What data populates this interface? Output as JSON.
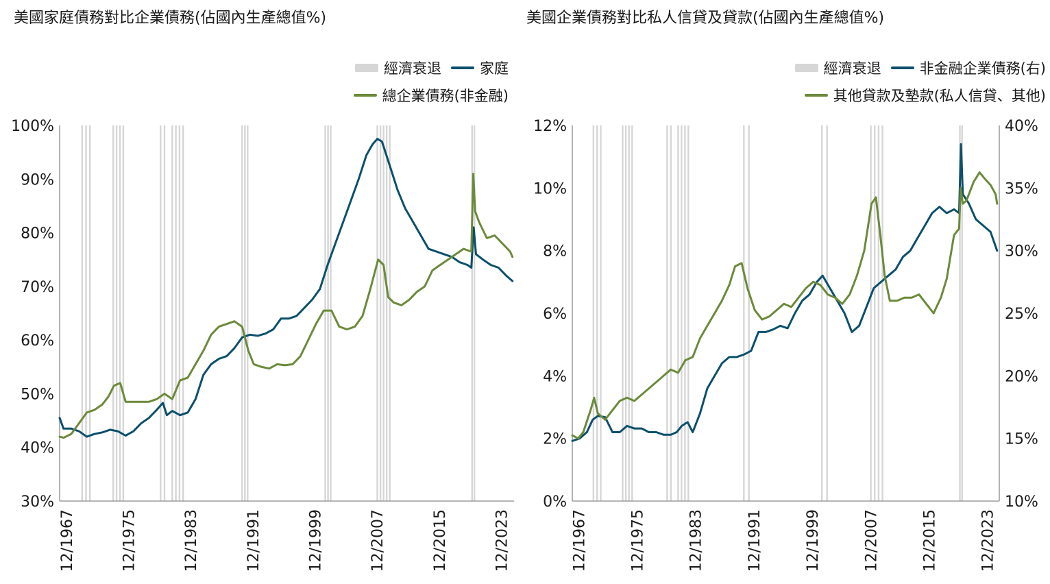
{
  "colors": {
    "recession": "#d6d6d6",
    "blue": "#0b4f6c",
    "green": "#6b8a3a",
    "axis": "#8a8a8a"
  },
  "chart_data": [
    {
      "type": "line",
      "title": "美國家庭債務對比企業債務(佔國內生產總值%)",
      "legend": [
        "經濟衰退",
        "家庭",
        "總企業債務(非金融)"
      ],
      "xlim": [
        1967,
        2025.5
      ],
      "ylim": [
        30,
        100
      ],
      "ytick_values": [
        30,
        40,
        50,
        60,
        70,
        80,
        90,
        100
      ],
      "ytick_labels": [
        "30%",
        "40%",
        "50%",
        "60%",
        "70%",
        "80%",
        "90%",
        "100%"
      ],
      "xtick_values": [
        1967.9,
        1975.9,
        1983.9,
        1991.9,
        1999.9,
        2007.9,
        2015.9,
        2023.9
      ],
      "xtick_labels": [
        "12/1967",
        "12/1975",
        "12/1983",
        "12/1991",
        "12/1999",
        "12/2007",
        "12/2015",
        "12/2023"
      ],
      "recessions": [
        [
          1969.9,
          1970.9
        ],
        [
          1973.9,
          1975.2
        ],
        [
          1980.0,
          1980.5
        ],
        [
          1981.5,
          1982.9
        ],
        [
          1990.5,
          1991.2
        ],
        [
          2001.2,
          2001.9
        ],
        [
          2007.9,
          2009.5
        ],
        [
          2020.1,
          2020.4
        ]
      ],
      "series": [
        {
          "name": "家庭",
          "color": "#0b4f6c",
          "x": [
            1967.0,
            1967.5,
            1968.5,
            1969.5,
            1970.5,
            1971.5,
            1972.5,
            1973.5,
            1974.5,
            1975.5,
            1976.5,
            1977.5,
            1978.5,
            1979.5,
            1980.3,
            1980.8,
            1981.5,
            1982.5,
            1983.5,
            1984.5,
            1985.5,
            1986.5,
            1987.5,
            1988.5,
            1989.5,
            1990.5,
            1991.5,
            1992.5,
            1993.5,
            1994.5,
            1995.5,
            1996.5,
            1997.5,
            1998.5,
            1999.5,
            2000.5,
            2001.5,
            2002.5,
            2003.5,
            2004.5,
            2005.5,
            2006.5,
            2007.3,
            2007.9,
            2008.5,
            2009.5,
            2010.5,
            2011.5,
            2012.5,
            2013.5,
            2014.5,
            2015.5,
            2016.5,
            2017.5,
            2018.5,
            2019.5,
            2020.0,
            2020.3,
            2020.6,
            2021.5,
            2022.5,
            2023.5,
            2024.5,
            2025.3
          ],
          "values": [
            45.5,
            43.5,
            43.5,
            43.0,
            42.0,
            42.5,
            42.8,
            43.3,
            43.0,
            42.2,
            43.0,
            44.5,
            45.5,
            47.0,
            48.3,
            46.0,
            46.8,
            46.0,
            46.5,
            49.0,
            53.5,
            55.5,
            56.5,
            57.0,
            58.5,
            60.5,
            61.0,
            60.8,
            61.2,
            62.0,
            64.0,
            64.0,
            64.5,
            66.0,
            67.5,
            69.5,
            74.0,
            78.0,
            82.0,
            86.0,
            90.0,
            94.5,
            96.5,
            97.5,
            97.0,
            92.5,
            88.0,
            84.5,
            82.0,
            79.5,
            77.0,
            76.5,
            76.0,
            75.5,
            74.5,
            74.0,
            73.5,
            81.0,
            76.0,
            75.0,
            74.0,
            73.5,
            72.0,
            71.0
          ]
        },
        {
          "name": "總企業債務(非金融)",
          "color": "#6b8a3a",
          "x": [
            1967.0,
            1967.5,
            1968.5,
            1969.5,
            1970.5,
            1971.5,
            1972.5,
            1973.3,
            1974.0,
            1974.8,
            1975.5,
            1976.5,
            1977.5,
            1978.5,
            1979.5,
            1980.5,
            1981.5,
            1982.5,
            1983.5,
            1984.5,
            1985.5,
            1986.5,
            1987.5,
            1988.5,
            1989.5,
            1990.5,
            1991.3,
            1992.0,
            1993.0,
            1994.0,
            1995.0,
            1996.0,
            1997.0,
            1998.0,
            1999.0,
            2000.0,
            2001.0,
            2002.0,
            2003.0,
            2004.0,
            2005.0,
            2006.0,
            2007.0,
            2008.0,
            2008.7,
            2009.3,
            2010.0,
            2011.0,
            2012.0,
            2013.0,
            2014.0,
            2015.0,
            2016.0,
            2017.0,
            2018.0,
            2019.0,
            2020.0,
            2020.25,
            2020.5,
            2021.0,
            2022.0,
            2023.0,
            2024.0,
            2025.0,
            2025.3
          ],
          "values": [
            42.0,
            41.8,
            42.5,
            44.5,
            46.5,
            47.0,
            48.0,
            49.5,
            51.5,
            52.0,
            48.5,
            48.5,
            48.5,
            48.5,
            49.0,
            50.0,
            49.0,
            52.5,
            53.0,
            55.5,
            58.0,
            61.0,
            62.5,
            63.0,
            63.5,
            62.5,
            58.0,
            55.5,
            55.0,
            54.7,
            55.5,
            55.3,
            55.5,
            57.0,
            60.0,
            63.0,
            65.5,
            65.5,
            62.5,
            62.0,
            62.5,
            64.5,
            69.5,
            75.0,
            74.0,
            68.0,
            67.0,
            66.5,
            67.5,
            69.0,
            70.0,
            73.0,
            74.0,
            75.0,
            76.0,
            77.0,
            76.5,
            91.0,
            84.0,
            82.0,
            79.0,
            79.5,
            78.0,
            76.5,
            75.5
          ]
        }
      ]
    },
    {
      "type": "line",
      "title": "美國企業債務對比私人信貸及貸款(佔國內生產總值%)",
      "legend": [
        "經濟衰退",
        "非金融企業債務(右)",
        "其他貸款及墊款(私人信貸、其他)"
      ],
      "xlim": [
        1967,
        2025.5
      ],
      "ylim_left": [
        0,
        12
      ],
      "ylim_right": [
        10,
        40
      ],
      "ytick_values_left": [
        0,
        2,
        4,
        6,
        8,
        10,
        12
      ],
      "ytick_labels_left": [
        "0%",
        "2%",
        "4%",
        "6%",
        "8%",
        "10%",
        "12%"
      ],
      "ytick_values_right": [
        10,
        15,
        20,
        25,
        30,
        35,
        40
      ],
      "ytick_labels_right": [
        "10%",
        "15%",
        "20%",
        "25%",
        "30%",
        "35%",
        "40%"
      ],
      "xtick_values": [
        1967.9,
        1975.9,
        1983.9,
        1991.9,
        1999.9,
        2007.9,
        2015.9,
        2023.9
      ],
      "xtick_labels": [
        "12/1967",
        "12/1975",
        "12/1983",
        "12/1991",
        "12/1999",
        "12/2007",
        "12/2015",
        "12/2023"
      ],
      "recessions": [
        [
          1969.9,
          1970.9
        ],
        [
          1973.9,
          1975.2
        ],
        [
          1980.0,
          1980.5
        ],
        [
          1981.5,
          1982.9
        ],
        [
          1990.5,
          1991.2
        ],
        [
          2001.2,
          2001.9
        ],
        [
          2007.9,
          2009.5
        ],
        [
          2020.1,
          2020.4
        ]
      ],
      "series": [
        {
          "name": "非金融企業債務(右)",
          "color": "#0b4f6c",
          "axis": "right",
          "x": [
            1967.0,
            1968.0,
            1969.0,
            1969.8,
            1970.5,
            1971.5,
            1972.5,
            1973.5,
            1974.5,
            1975.5,
            1976.5,
            1977.5,
            1978.5,
            1979.5,
            1980.5,
            1981.3,
            1982.0,
            1982.8,
            1983.5,
            1984.5,
            1985.5,
            1986.5,
            1987.5,
            1988.5,
            1989.5,
            1990.5,
            1991.5,
            1992.5,
            1993.5,
            1994.5,
            1995.5,
            1996.5,
            1997.5,
            1998.5,
            1999.5,
            2000.5,
            2001.3,
            2002.3,
            2003.3,
            2004.3,
            2005.3,
            2006.3,
            2007.3,
            2008.3,
            2009.3,
            2010.3,
            2011.3,
            2012.3,
            2013.3,
            2014.3,
            2015.3,
            2016.3,
            2017.3,
            2018.3,
            2019.3,
            2020.0,
            2020.25,
            2020.5,
            2021.3,
            2022.3,
            2023.3,
            2024.3,
            2025.2
          ],
          "values": [
            14.8,
            15.0,
            15.5,
            16.5,
            16.8,
            16.7,
            15.5,
            15.5,
            16.0,
            15.8,
            15.8,
            15.5,
            15.5,
            15.3,
            15.3,
            15.5,
            16.0,
            16.3,
            15.5,
            17.0,
            19.0,
            20.0,
            21.0,
            21.5,
            21.5,
            21.7,
            22.0,
            23.5,
            23.5,
            23.7,
            24.0,
            23.8,
            25.0,
            26.0,
            26.5,
            27.5,
            28.0,
            27.0,
            26.0,
            25.0,
            23.5,
            24.0,
            25.5,
            27.0,
            27.5,
            28.0,
            28.5,
            29.5,
            30.0,
            31.0,
            32.0,
            33.0,
            33.5,
            33.0,
            33.3,
            33.0,
            38.5,
            34.5,
            33.8,
            32.5,
            32.0,
            31.5,
            30.0
          ]
        },
        {
          "name": "其他貸款及墊款(私人信貸、其他)",
          "color": "#6b8a3a",
          "axis": "left",
          "x": [
            1967.0,
            1967.8,
            1968.5,
            1969.5,
            1970.0,
            1970.5,
            1971.5,
            1972.5,
            1973.5,
            1974.5,
            1975.5,
            1976.5,
            1977.5,
            1978.5,
            1979.5,
            1980.5,
            1981.5,
            1982.5,
            1983.5,
            1984.5,
            1985.5,
            1986.5,
            1987.5,
            1988.5,
            1989.3,
            1990.2,
            1991.0,
            1992.0,
            1993.0,
            1994.0,
            1995.0,
            1996.0,
            1997.0,
            1998.0,
            1999.0,
            2000.0,
            2001.0,
            2002.0,
            2003.0,
            2004.0,
            2005.0,
            2006.0,
            2007.0,
            2008.0,
            2008.6,
            2009.2,
            2009.8,
            2010.5,
            2011.5,
            2012.5,
            2013.5,
            2014.5,
            2015.5,
            2016.5,
            2017.5,
            2018.3,
            2019.3,
            2020.0,
            2020.2,
            2020.5,
            2021.0,
            2022.0,
            2022.8,
            2023.5,
            2024.3,
            2025.0,
            2025.2
          ],
          "values": [
            2.1,
            2.0,
            2.2,
            2.9,
            3.3,
            2.8,
            2.6,
            2.9,
            3.2,
            3.3,
            3.2,
            3.4,
            3.6,
            3.8,
            4.0,
            4.2,
            4.1,
            4.5,
            4.6,
            5.2,
            5.6,
            6.0,
            6.4,
            6.9,
            7.5,
            7.6,
            6.8,
            6.1,
            5.8,
            5.9,
            6.1,
            6.3,
            6.2,
            6.5,
            6.8,
            7.0,
            6.9,
            6.6,
            6.5,
            6.3,
            6.6,
            7.2,
            8.0,
            9.5,
            9.7,
            8.5,
            7.2,
            6.4,
            6.4,
            6.5,
            6.5,
            6.6,
            6.3,
            6.0,
            6.5,
            7.1,
            8.5,
            8.7,
            10.0,
            9.5,
            9.6,
            10.2,
            10.5,
            10.3,
            10.1,
            9.8,
            9.5
          ]
        }
      ]
    }
  ]
}
